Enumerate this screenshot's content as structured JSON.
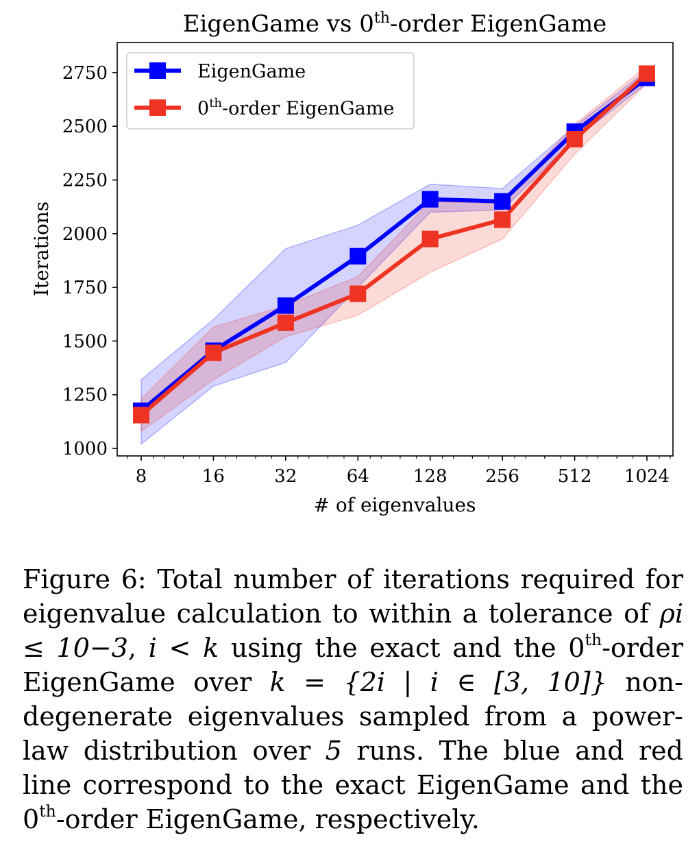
{
  "chart_data": {
    "type": "line",
    "title_prefix": "EigenGame vs 0",
    "title_sup": "th",
    "title_suffix": "-order EigenGame",
    "xlabel": "# of eigenvalues",
    "ylabel": "Iterations",
    "x": [
      8,
      16,
      32,
      64,
      128,
      256,
      512,
      1024
    ],
    "xscale": "log2",
    "x_tick_labels": [
      "8",
      "16",
      "32",
      "64",
      "128",
      "256",
      "512",
      "1024"
    ],
    "ylim": [
      965,
      2890
    ],
    "y_ticks": [
      1000,
      1250,
      1500,
      1750,
      2000,
      2250,
      2500,
      2750
    ],
    "grid": false,
    "legend_position": "top-left",
    "series": [
      {
        "name": "EigenGame",
        "color": "#0000ff",
        "values": [
          1175,
          1455,
          1665,
          1895,
          2160,
          2150,
          2475,
          2725
        ],
        "band_upper": [
          1320,
          1600,
          1930,
          2040,
          2230,
          2210,
          2500,
          2760
        ],
        "band_lower": [
          1020,
          1290,
          1400,
          1750,
          2100,
          2110,
          2440,
          2700
        ]
      },
      {
        "name_prefix": "0",
        "name_sup": "th",
        "name_suffix": "-order EigenGame",
        "color": "#ee3322",
        "values": [
          1155,
          1445,
          1585,
          1720,
          1975,
          2065,
          2440,
          2745
        ],
        "band_upper": [
          1230,
          1565,
          1665,
          1800,
          2150,
          2140,
          2510,
          2780
        ],
        "band_lower": [
          1080,
          1320,
          1520,
          1620,
          1820,
          1975,
          2370,
          2700
        ]
      }
    ]
  },
  "caption": {
    "p1": "Figure 6: Total number of iterations required for eigenvalue calculation to within a tolerance of ",
    "m1": "ρi ≤ 10−3",
    "p2": ", ",
    "m2": "i < k",
    "p3": " using the exact and the 0",
    "sup1": "th",
    "p4": "-order EigenGame over ",
    "m3": "k = {2i | i ∈ [3, 10]}",
    "p5": " non-degenerate eigenvalues sampled from a power-law distribution over ",
    "m4": "5",
    "p6": " runs.  The blue and red line correspond to the exact EigenGame and the 0",
    "sup2": "th",
    "p7": "-order EigenGame, respectively."
  }
}
